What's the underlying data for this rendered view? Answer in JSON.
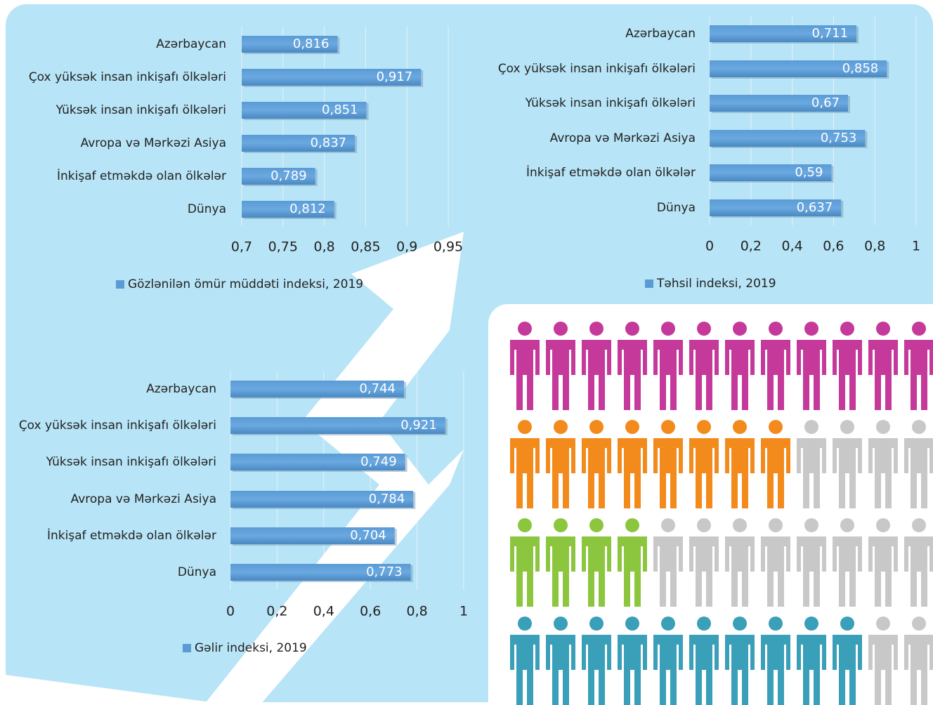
{
  "chart_data": [
    {
      "type": "bar",
      "orientation": "horizontal",
      "categories": [
        "Azərbaycan",
        "Çox yüksək insan inkişafı ölkələri",
        "Yüksək insan inkişafı ölkələri",
        "Avropa və Mərkəzi Asiya",
        "İnkişaf etməkdə olan ölkələr",
        "Dünya"
      ],
      "series": [
        {
          "name": "Gözlənilən ömür müddəti indeksi, 2019",
          "color": "#5b9bd5",
          "values": [
            0.816,
            0.917,
            0.851,
            0.837,
            0.789,
            0.812
          ],
          "value_labels": [
            "0,816",
            "0,917",
            "0,851",
            "0,837",
            "0,789",
            "0,812"
          ]
        }
      ],
      "xlim": [
        0.7,
        0.95
      ],
      "xticks": [
        {
          "value": 0.7,
          "label": "0,7"
        },
        {
          "value": 0.75,
          "label": "0,75"
        },
        {
          "value": 0.8,
          "label": "0,8"
        },
        {
          "value": 0.85,
          "label": "0,85"
        },
        {
          "value": 0.9,
          "label": "0,9"
        },
        {
          "value": 0.95,
          "label": "0,95"
        }
      ],
      "grid": true
    },
    {
      "type": "bar",
      "orientation": "horizontal",
      "categories": [
        "Azərbaycan",
        "Çox yüksək insan inkişafı ölkələri",
        "Yüksək insan inkişafı ölkələri",
        "Avropa və Mərkəzi Asiya",
        "İnkişaf etməkdə olan ölkələr",
        "Dünya"
      ],
      "series": [
        {
          "name": "Təhsil indeksi, 2019",
          "color": "#5b9bd5",
          "values": [
            0.711,
            0.858,
            0.67,
            0.753,
            0.59,
            0.637
          ],
          "value_labels": [
            "0,711",
            "0,858",
            "0,67",
            "0,753",
            "0,59",
            "0,637"
          ]
        }
      ],
      "xlim": [
        0,
        1
      ],
      "xticks": [
        0,
        {
          "value": 0.2,
          "label": "0,2"
        },
        {
          "value": 0.4,
          "label": "0,4"
        },
        {
          "value": 0.6,
          "label": "0,6"
        },
        {
          "value": 0.8,
          "label": "0,8"
        },
        1
      ],
      "grid": true
    },
    {
      "type": "bar",
      "orientation": "horizontal",
      "categories": [
        "Azərbaycan",
        "Çox yüksək insan inkişafı ölkələri",
        "Yüksək insan inkişafı ölkələri",
        "Avropa və Mərkəzi Asiya",
        "İnkişaf etməkdə olan ölkələr",
        "Dünya"
      ],
      "series": [
        {
          "name": "Gəlir indeksi, 2019",
          "color": "#5b9bd5",
          "values": [
            0.744,
            0.921,
            0.749,
            0.784,
            0.704,
            0.773
          ],
          "value_labels": [
            "0,744",
            "0,921",
            "0,749",
            "0,784",
            "0,704",
            "0,773"
          ]
        }
      ],
      "xlim": [
        0,
        1
      ],
      "xticks": [
        0,
        {
          "value": 0.2,
          "label": "0,2"
        },
        {
          "value": 0.4,
          "label": "0,4"
        },
        {
          "value": 0.6,
          "label": "0,6"
        },
        {
          "value": 0.8,
          "label": "0,8"
        },
        1
      ],
      "grid": true
    }
  ]
}
